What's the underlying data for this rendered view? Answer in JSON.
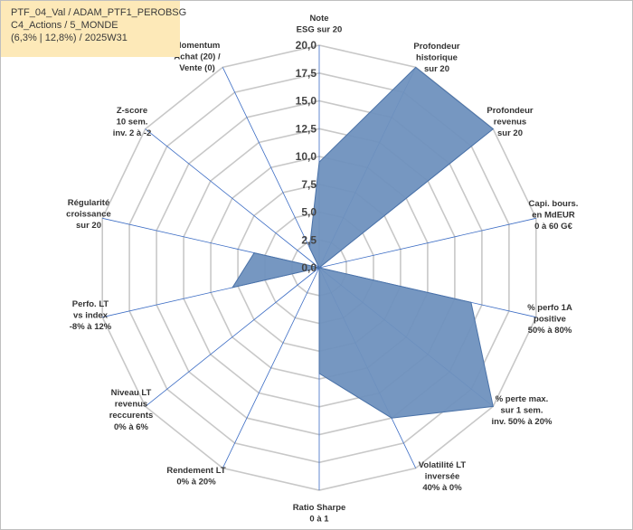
{
  "header": {
    "line1": "PTF_04_Val / ADAM_PTF1_PEROBSG",
    "line2": "C4_Actions / 5_MONDE",
    "line3": "(6,3% | 12,8%) / 2025W31"
  },
  "chart_data": {
    "type": "radar",
    "rmax": 20,
    "ticks": [
      "0,0",
      "2,5",
      "5,0",
      "7,5",
      "10,0",
      "12,5",
      "15,0",
      "17,5",
      "20,0"
    ],
    "axes": [
      {
        "label": [
          "Note",
          "ESG sur 20"
        ],
        "value": 9.5
      },
      {
        "label": [
          "Profondeur",
          "historique",
          "sur 20"
        ],
        "value": 20
      },
      {
        "label": [
          "Profondeur",
          "revenus",
          "sur 20"
        ],
        "value": 20
      },
      {
        "label": [
          "Capi. bours.",
          "en MdEUR",
          "0 à 60 G€"
        ],
        "value": 0
      },
      {
        "label": [
          "% perfo 1A",
          "positive",
          "50% à 80%"
        ],
        "value": 14
      },
      {
        "label": [
          "% perte max.",
          "sur 1 sem.",
          "inv. 50% à 20%"
        ],
        "value": 20
      },
      {
        "label": [
          "Volatilité LT",
          "inversée",
          "40% à 0%"
        ],
        "value": 15
      },
      {
        "label": [
          "Ratio Sharpe",
          "0 à 1"
        ],
        "value": 9.5
      },
      {
        "label": [
          "Rendement LT",
          "0% à 20%"
        ],
        "value": 0
      },
      {
        "label": [
          "Niveau LT",
          "revenus",
          "reccurents",
          "0% à 6%"
        ],
        "value": 0
      },
      {
        "label": [
          "Perfo. LT",
          "vs index",
          "-8% à 12%"
        ],
        "value": 8
      },
      {
        "label": [
          "Régularité",
          "croissance",
          "sur 20"
        ],
        "value": 6
      },
      {
        "label": [
          "Z-score",
          "10 sem.",
          "inv. 2 à -2"
        ],
        "value": 0
      },
      {
        "label": [
          "Momentum",
          "Achat (20) /",
          "Vente (0)"
        ],
        "value": 2
      }
    ],
    "series": [
      {
        "color": "#4a72a8",
        "fill": "#6f91be"
      }
    ],
    "grid": true,
    "grid_color": "#c8c8c8",
    "axis_color": "#3b6cc4"
  }
}
